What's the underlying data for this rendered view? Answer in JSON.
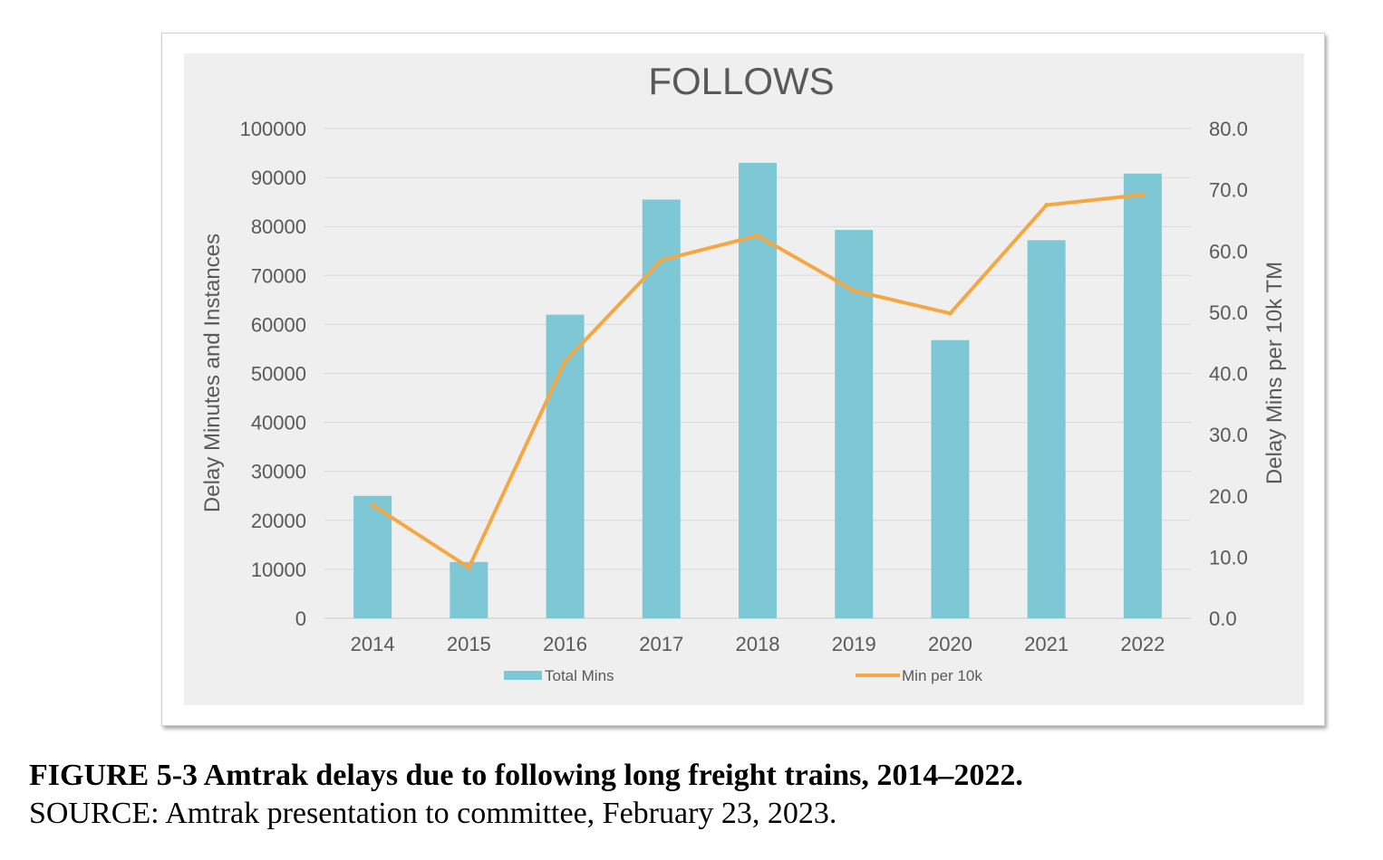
{
  "chart_data": {
    "type": "bar",
    "title": "FOLLOWS",
    "categories": [
      "2014",
      "2015",
      "2016",
      "2017",
      "2018",
      "2019",
      "2020",
      "2021",
      "2022"
    ],
    "series": [
      {
        "name": "Total Mins",
        "type": "bar",
        "axis": "left",
        "color": "#7ec8d6",
        "values": [
          25000,
          11500,
          62000,
          85500,
          93000,
          79300,
          56800,
          77200,
          90800
        ]
      },
      {
        "name": "Min per 10k",
        "type": "line",
        "axis": "right",
        "color": "#f4a742",
        "values": [
          18.5,
          8.3,
          42.0,
          58.5,
          62.5,
          53.5,
          49.8,
          67.5,
          69.2
        ]
      }
    ],
    "ylabel": "Delay Minutes and Instances",
    "ylabel_right": "Delay Mins per 10k TM",
    "ylim": [
      0,
      100000
    ],
    "ylim_right": [
      0,
      80
    ],
    "yticks": [
      "0",
      "10000",
      "20000",
      "30000",
      "40000",
      "50000",
      "60000",
      "70000",
      "80000",
      "90000",
      "100000"
    ],
    "yticks_right": [
      "0.0",
      "10.0",
      "20.0",
      "30.0",
      "40.0",
      "50.0",
      "60.0",
      "70.0",
      "80.0"
    ],
    "grid": true,
    "legend_position": "bottom"
  },
  "caption": {
    "title": "FIGURE 5-3 Amtrak delays due to following long freight trains, 2014–2022.",
    "source": "SOURCE: Amtrak presentation to committee, February 23, 2023."
  }
}
